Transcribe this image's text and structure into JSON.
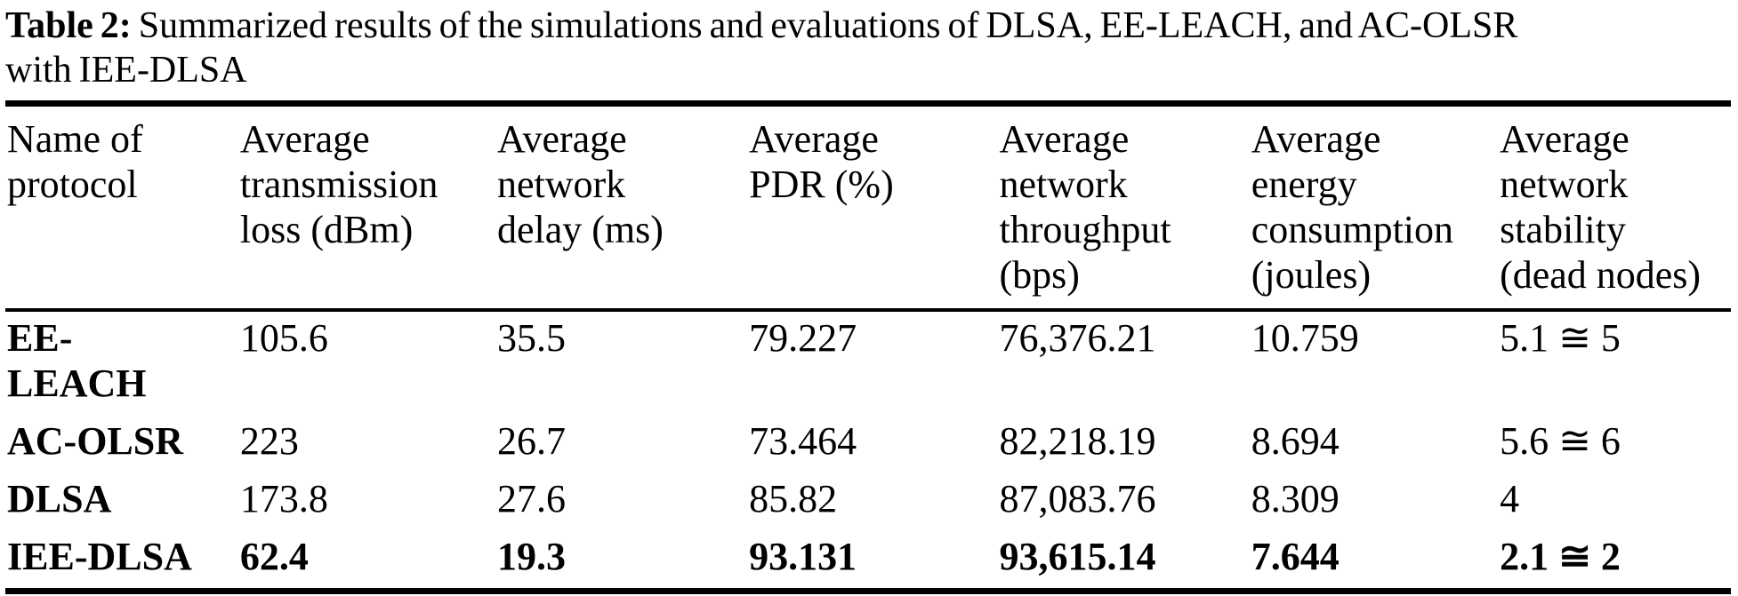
{
  "caption": {
    "label": "Table 2:",
    "text": "Summarized results of the simulations and evaluations of DLSA, EE-LEACH, and AC-OLSR\nwith IEE-DLSA"
  },
  "table": {
    "columns": [
      "Name of\nprotocol",
      "Average\ntransmission\nloss (dBm)",
      "Average\nnetwork\ndelay (ms)",
      "Average\nPDR (%)",
      "Average\nnetwork\nthroughput\n(bps)",
      "Average\nenergy\nconsumption\n(joules)",
      "Average\nnetwork\nstability\n(dead nodes)"
    ],
    "rows": [
      {
        "cells": [
          "EE-\nLEACH",
          "105.6",
          "35.5",
          "79.227",
          "76,376.21",
          "10.759",
          "5.1 ≅ 5"
        ]
      },
      {
        "cells": [
          "AC-OLSR",
          "223",
          "26.7",
          "73.464",
          "82,218.19",
          "8.694",
          "5.6 ≅ 6"
        ]
      },
      {
        "cells": [
          "DLSA",
          "173.8",
          "27.6",
          "85.82",
          "87,083.76",
          "8.309",
          "4"
        ]
      },
      {
        "cells": [
          "IEE-DLSA",
          "62.4",
          "19.3",
          "93.131",
          "93,615.14",
          "7.644",
          "2.1 ≅ 2"
        ]
      }
    ]
  }
}
